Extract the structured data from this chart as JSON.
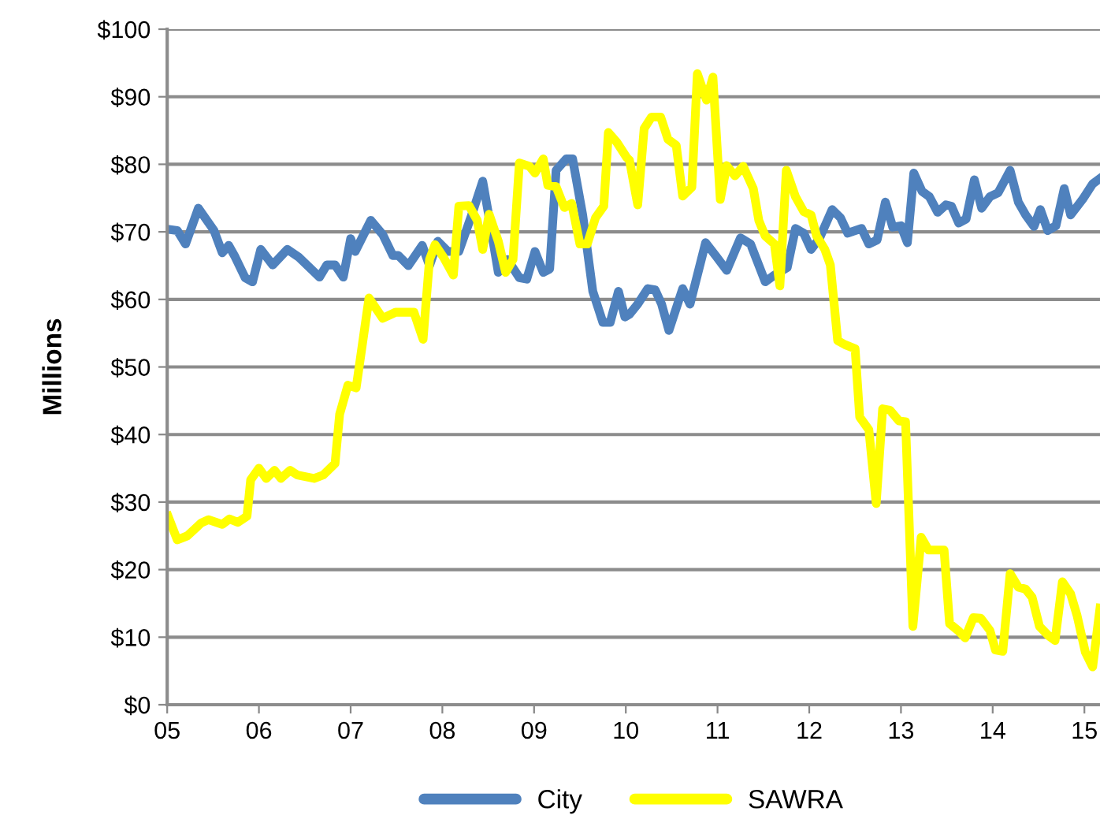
{
  "chart_data": {
    "type": "line",
    "ylabel": "Millions",
    "xlim": [
      2005,
      2015.17
    ],
    "ylim": [
      0,
      100
    ],
    "xticks": [
      {
        "value": 2005,
        "label": "05"
      },
      {
        "value": 2006,
        "label": "06"
      },
      {
        "value": 2007,
        "label": "07"
      },
      {
        "value": 2008,
        "label": "08"
      },
      {
        "value": 2009,
        "label": "09"
      },
      {
        "value": 2010,
        "label": "10"
      },
      {
        "value": 2011,
        "label": "11"
      },
      {
        "value": 2012,
        "label": "12"
      },
      {
        "value": 2013,
        "label": "13"
      },
      {
        "value": 2014,
        "label": "14"
      },
      {
        "value": 2015,
        "label": "15"
      }
    ],
    "yticks": [
      {
        "value": 0,
        "label": "$0"
      },
      {
        "value": 10,
        "label": "$10"
      },
      {
        "value": 20,
        "label": "$20"
      },
      {
        "value": 30,
        "label": "$30"
      },
      {
        "value": 40,
        "label": "$40"
      },
      {
        "value": 50,
        "label": "$50"
      },
      {
        "value": 60,
        "label": "$60"
      },
      {
        "value": 70,
        "label": "$70"
      },
      {
        "value": 80,
        "label": "$80"
      },
      {
        "value": 90,
        "label": "$90"
      },
      {
        "value": 100,
        "label": "$100"
      }
    ],
    "grid": "y",
    "legend": "bottom",
    "marker": "none",
    "line_style": "solid",
    "series": [
      {
        "name": "City",
        "color": "#4f81bd",
        "x": [
          2005.0,
          2005.11,
          2005.2,
          2005.34,
          2005.51,
          2005.6,
          2005.67,
          2005.74,
          2005.85,
          2005.93,
          2006.02,
          2006.15,
          2006.31,
          2006.43,
          2006.66,
          2006.74,
          2006.83,
          2006.92,
          2007.0,
          2007.05,
          2007.22,
          2007.35,
          2007.46,
          2007.52,
          2007.63,
          2007.78,
          2007.86,
          2007.95,
          2008.06,
          2008.18,
          2008.32,
          2008.44,
          2008.51,
          2008.61,
          2008.71,
          2008.84,
          2008.92,
          2009.01,
          2009.1,
          2009.17,
          2009.24,
          2009.35,
          2009.42,
          2009.53,
          2009.64,
          2009.75,
          2009.83,
          2009.92,
          2009.99,
          2010.04,
          2010.13,
          2010.24,
          2010.32,
          2010.39,
          2010.47,
          2010.62,
          2010.7,
          2010.87,
          2010.99,
          2011.1,
          2011.25,
          2011.36,
          2011.52,
          2011.62,
          2011.76,
          2011.85,
          2011.94,
          2012.02,
          2012.11,
          2012.25,
          2012.34,
          2012.42,
          2012.57,
          2012.65,
          2012.74,
          2012.83,
          2012.91,
          2013.0,
          2013.07,
          2013.14,
          2013.23,
          2013.31,
          2013.4,
          2013.49,
          2013.55,
          2013.63,
          2013.71,
          2013.8,
          2013.88,
          2013.97,
          2014.06,
          2014.19,
          2014.28,
          2014.36,
          2014.45,
          2014.52,
          2014.6,
          2014.69,
          2014.78,
          2014.85,
          2014.98,
          2015.09,
          2015.17
        ],
        "values": [
          70.4,
          70.2,
          68.2,
          73.5,
          70.2,
          66.9,
          68,
          66.3,
          63.2,
          62.6,
          67.4,
          65.1,
          67.4,
          66.3,
          63.3,
          65.1,
          65.1,
          63.3,
          69,
          67.1,
          71.7,
          69.6,
          66.5,
          66.5,
          65,
          68,
          65,
          68.6,
          67.1,
          67.1,
          72.5,
          77.5,
          72.1,
          64,
          65.9,
          63.2,
          63,
          67.1,
          64,
          64.5,
          79.1,
          80.8,
          80.8,
          72.5,
          61.2,
          56.6,
          56.6,
          61.2,
          57.4,
          57.8,
          59.3,
          61.6,
          61.4,
          59.3,
          55.4,
          61.6,
          59.3,
          68.4,
          66.3,
          64.3,
          69.1,
          68.2,
          62.6,
          63.6,
          64.7,
          70.5,
          69.8,
          67.4,
          69,
          73.3,
          72.1,
          69.8,
          70.5,
          68.2,
          68.8,
          74.4,
          70.7,
          70.9,
          68.4,
          78.7,
          76,
          75.2,
          72.9,
          74,
          73.8,
          71.3,
          71.9,
          77.7,
          73.5,
          75.2,
          75.8,
          79.1,
          74.4,
          72.5,
          70.8,
          73.3,
          70.2,
          70.9,
          76.4,
          72.5,
          74.8,
          77.1,
          77.9
        ]
      },
      {
        "name": "SAWRA",
        "color": "#ffff00",
        "x": [
          2005.01,
          2005.11,
          2005.22,
          2005.37,
          2005.45,
          2005.6,
          2005.68,
          2005.77,
          2005.87,
          2005.91,
          2006.0,
          2006.08,
          2006.17,
          2006.24,
          2006.34,
          2006.42,
          2006.6,
          2006.7,
          2006.83,
          2006.88,
          2006.97,
          2007.06,
          2007.2,
          2007.35,
          2007.49,
          2007.69,
          2007.79,
          2007.86,
          2007.92,
          2008.01,
          2008.12,
          2008.18,
          2008.29,
          2008.38,
          2008.44,
          2008.51,
          2008.61,
          2008.69,
          2008.77,
          2008.84,
          2008.95,
          2009.01,
          2009.1,
          2009.15,
          2009.24,
          2009.33,
          2009.41,
          2009.5,
          2009.58,
          2009.67,
          2009.76,
          2009.81,
          2009.9,
          2010.01,
          2010.04,
          2010.13,
          2010.2,
          2010.28,
          2010.38,
          2010.46,
          2010.55,
          2010.62,
          2010.72,
          2010.78,
          2010.88,
          2010.95,
          2011.03,
          2011.1,
          2011.19,
          2011.28,
          2011.39,
          2011.45,
          2011.52,
          2011.62,
          2011.68,
          2011.75,
          2011.85,
          2011.94,
          2012.02,
          2012.08,
          2012.17,
          2012.23,
          2012.31,
          2012.39,
          2012.5,
          2012.55,
          2012.65,
          2012.73,
          2012.8,
          2012.88,
          2012.98,
          2013.05,
          2013.13,
          2013.22,
          2013.3,
          2013.47,
          2013.53,
          2013.63,
          2013.7,
          2013.79,
          2013.87,
          2013.97,
          2014.03,
          2014.11,
          2014.19,
          2014.28,
          2014.36,
          2014.43,
          2014.51,
          2014.61,
          2014.68,
          2014.76,
          2014.85,
          2014.92,
          2015.01,
          2015.09,
          2015.17
        ],
        "values": [
          27.9,
          24.4,
          25,
          26.9,
          27.4,
          26.7,
          27.5,
          27,
          27.9,
          33.3,
          35,
          33.5,
          34.7,
          33.5,
          34.7,
          34,
          33.5,
          34,
          35.7,
          43,
          47.3,
          46.9,
          60.2,
          57.2,
          58.1,
          58.1,
          54.1,
          65.9,
          68.1,
          66.3,
          63.6,
          73.8,
          73.9,
          71.7,
          67.4,
          72.6,
          68.6,
          64,
          65.9,
          80.2,
          79.7,
          78.7,
          80.8,
          76.9,
          76.7,
          73.6,
          74.2,
          68.2,
          68.2,
          72.1,
          73.8,
          84.7,
          83.3,
          81,
          80.6,
          74,
          85.3,
          87,
          87,
          83.7,
          82.8,
          75.3,
          76.6,
          93.4,
          89.5,
          92.9,
          74.8,
          79.8,
          78.3,
          79.7,
          76.4,
          71.7,
          69.4,
          68.2,
          62,
          79.1,
          75.2,
          73,
          72.5,
          69.4,
          67.4,
          65.1,
          53.9,
          53.3,
          52.7,
          42.6,
          40.7,
          29.8,
          43.8,
          43.6,
          42,
          41.9,
          11.6,
          24.8,
          22.9,
          22.9,
          12,
          10.9,
          9.9,
          12.9,
          12.8,
          11,
          8.1,
          7.9,
          19.4,
          17.4,
          17.1,
          15.9,
          11.6,
          10.2,
          9.5,
          18.2,
          16.4,
          13.2,
          7.8,
          5.6,
          14.3
        ]
      }
    ]
  }
}
